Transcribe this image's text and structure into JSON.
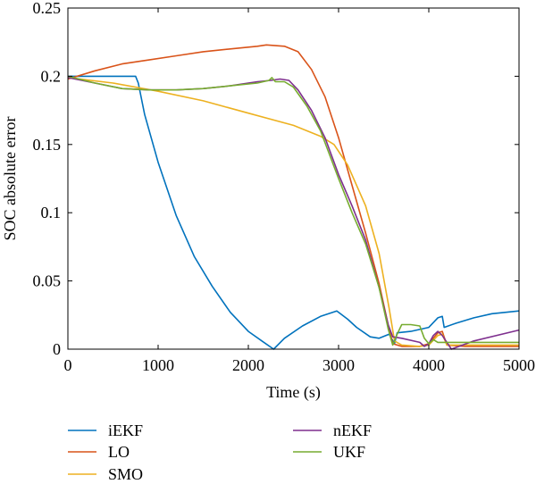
{
  "chart_data": {
    "type": "line",
    "title": "",
    "xlabel": "Time (s)",
    "ylabel": "SOC absolute error",
    "xlim": [
      0,
      5000
    ],
    "ylim": [
      0,
      0.25
    ],
    "xticks": [
      0,
      1000,
      2000,
      3000,
      4000,
      5000
    ],
    "xtick_labels": [
      "0",
      "1000",
      "2000",
      "3000",
      "4000",
      "5000"
    ],
    "yticks": [
      0,
      0.05,
      0.1,
      0.15,
      0.2,
      0.25
    ],
    "ytick_labels": [
      "0",
      "0.05",
      "0.1",
      "0.15",
      "0.2",
      "0.25"
    ],
    "grid": false,
    "legend_position": "below",
    "series": [
      {
        "name": "iEKF",
        "color": "#0072BD",
        "points": [
          [
            0,
            0.2
          ],
          [
            750,
            0.2
          ],
          [
            780,
            0.195
          ],
          [
            850,
            0.172
          ],
          [
            1000,
            0.137
          ],
          [
            1200,
            0.098
          ],
          [
            1400,
            0.068
          ],
          [
            1600,
            0.046
          ],
          [
            1800,
            0.027
          ],
          [
            2000,
            0.013
          ],
          [
            2150,
            0.006
          ],
          [
            2280,
            0.0
          ],
          [
            2400,
            0.008
          ],
          [
            2600,
            0.017
          ],
          [
            2800,
            0.024
          ],
          [
            2980,
            0.028
          ],
          [
            3100,
            0.022
          ],
          [
            3200,
            0.016
          ],
          [
            3350,
            0.009
          ],
          [
            3450,
            0.008
          ],
          [
            3560,
            0.011
          ],
          [
            3620,
            0.004
          ],
          [
            3650,
            0.012
          ],
          [
            3800,
            0.013
          ],
          [
            4000,
            0.016
          ],
          [
            4100,
            0.023
          ],
          [
            4150,
            0.024
          ],
          [
            4170,
            0.016
          ],
          [
            4300,
            0.019
          ],
          [
            4500,
            0.023
          ],
          [
            4700,
            0.026
          ],
          [
            5000,
            0.028
          ]
        ]
      },
      {
        "name": "LO",
        "color": "#D95319",
        "points": [
          [
            0,
            0.198
          ],
          [
            300,
            0.204
          ],
          [
            600,
            0.209
          ],
          [
            900,
            0.212
          ],
          [
            1200,
            0.215
          ],
          [
            1500,
            0.218
          ],
          [
            1800,
            0.22
          ],
          [
            2100,
            0.222
          ],
          [
            2200,
            0.223
          ],
          [
            2400,
            0.222
          ],
          [
            2550,
            0.218
          ],
          [
            2700,
            0.205
          ],
          [
            2850,
            0.185
          ],
          [
            3000,
            0.155
          ],
          [
            3150,
            0.12
          ],
          [
            3300,
            0.085
          ],
          [
            3450,
            0.048
          ],
          [
            3550,
            0.018
          ],
          [
            3600,
            0.004
          ],
          [
            3700,
            0.002
          ],
          [
            3900,
            0.002
          ],
          [
            4000,
            0.004
          ],
          [
            4100,
            0.012
          ],
          [
            4150,
            0.013
          ],
          [
            4200,
            0.003
          ],
          [
            4400,
            0.002
          ],
          [
            5000,
            0.002
          ]
        ]
      },
      {
        "name": "SMO",
        "color": "#EDB120",
        "points": [
          [
            0,
            0.199
          ],
          [
            500,
            0.195
          ],
          [
            1000,
            0.189
          ],
          [
            1500,
            0.182
          ],
          [
            2000,
            0.173
          ],
          [
            2500,
            0.164
          ],
          [
            2800,
            0.156
          ],
          [
            2950,
            0.15
          ],
          [
            3100,
            0.135
          ],
          [
            3300,
            0.105
          ],
          [
            3450,
            0.07
          ],
          [
            3560,
            0.03
          ],
          [
            3620,
            0.006
          ],
          [
            3700,
            0.003
          ],
          [
            3900,
            0.002
          ],
          [
            4000,
            0.003
          ],
          [
            4100,
            0.01
          ],
          [
            4150,
            0.011
          ],
          [
            4200,
            0.003
          ],
          [
            4500,
            0.003
          ],
          [
            5000,
            0.003
          ]
        ]
      },
      {
        "name": "nEKF",
        "color": "#7E2F8E",
        "points": [
          [
            0,
            0.199
          ],
          [
            300,
            0.195
          ],
          [
            600,
            0.191
          ],
          [
            900,
            0.19
          ],
          [
            1200,
            0.19
          ],
          [
            1500,
            0.191
          ],
          [
            1800,
            0.193
          ],
          [
            2100,
            0.196
          ],
          [
            2250,
            0.197
          ],
          [
            2350,
            0.198
          ],
          [
            2450,
            0.197
          ],
          [
            2550,
            0.19
          ],
          [
            2700,
            0.175
          ],
          [
            2850,
            0.155
          ],
          [
            3000,
            0.128
          ],
          [
            3150,
            0.105
          ],
          [
            3300,
            0.08
          ],
          [
            3450,
            0.045
          ],
          [
            3550,
            0.018
          ],
          [
            3600,
            0.009
          ],
          [
            3700,
            0.008
          ],
          [
            3900,
            0.005
          ],
          [
            3950,
            0.002
          ],
          [
            4000,
            0.004
          ],
          [
            4050,
            0.01
          ],
          [
            4100,
            0.013
          ],
          [
            4150,
            0.01
          ],
          [
            4250,
            0.0
          ],
          [
            4500,
            0.006
          ],
          [
            5000,
            0.014
          ]
        ]
      },
      {
        "name": "UKF",
        "color": "#77AC30",
        "points": [
          [
            0,
            0.2
          ],
          [
            300,
            0.195
          ],
          [
            600,
            0.191
          ],
          [
            900,
            0.19
          ],
          [
            1200,
            0.19
          ],
          [
            1500,
            0.191
          ],
          [
            1800,
            0.193
          ],
          [
            2100,
            0.195
          ],
          [
            2230,
            0.197
          ],
          [
            2260,
            0.199
          ],
          [
            2300,
            0.196
          ],
          [
            2400,
            0.196
          ],
          [
            2500,
            0.192
          ],
          [
            2650,
            0.178
          ],
          [
            2800,
            0.16
          ],
          [
            3000,
            0.125
          ],
          [
            3150,
            0.1
          ],
          [
            3300,
            0.077
          ],
          [
            3450,
            0.045
          ],
          [
            3550,
            0.015
          ],
          [
            3600,
            0.003
          ],
          [
            3650,
            0.011
          ],
          [
            3700,
            0.018
          ],
          [
            3800,
            0.018
          ],
          [
            3900,
            0.017
          ],
          [
            3950,
            0.008
          ],
          [
            4000,
            0.004
          ],
          [
            4050,
            0.007
          ],
          [
            4100,
            0.005
          ],
          [
            4200,
            0.005
          ],
          [
            5000,
            0.005
          ]
        ]
      }
    ]
  }
}
